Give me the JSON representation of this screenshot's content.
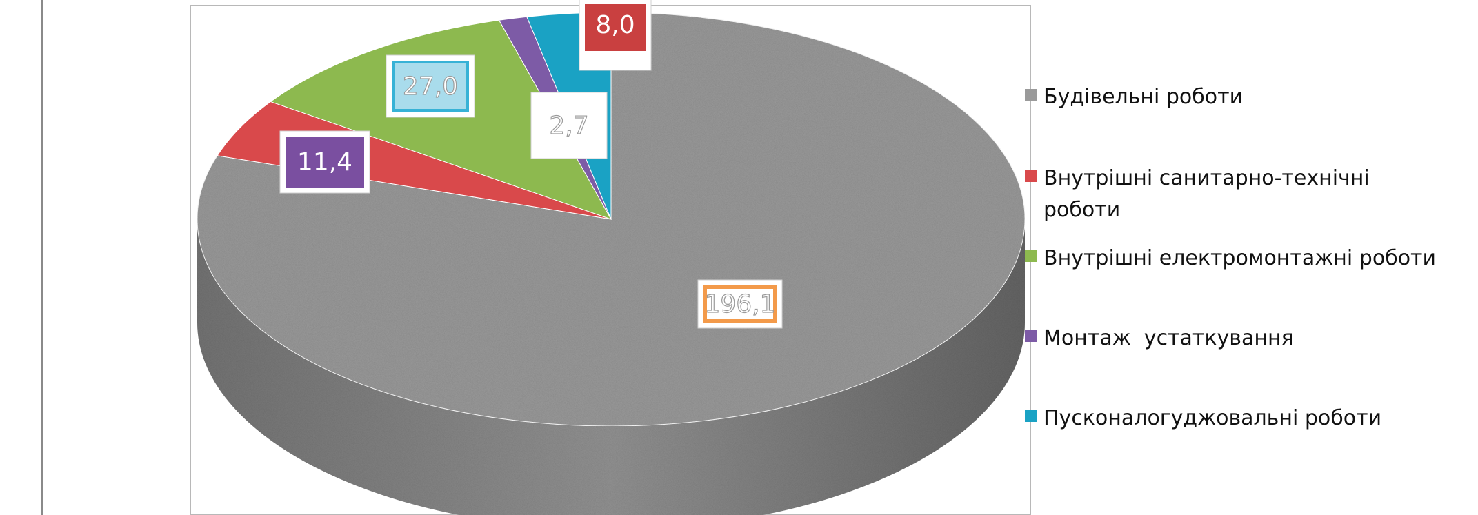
{
  "chart_data": {
    "type": "pie",
    "title": "",
    "categories": [
      "Будівельні роботи",
      "Внутрішні санитарно-технічні роботи",
      "Внутрішні електромонтажні роботи",
      "Монтаж  устаткування",
      "Пусконалогуджовальні роботи"
    ],
    "values": [
      196.1,
      11.4,
      27.0,
      2.7,
      8.0
    ],
    "data_labels": [
      "196,1",
      "11,4",
      "27,0",
      "2,7",
      "8,0"
    ],
    "colors": [
      "#9a9a9a",
      "#d9494b",
      "#8db94f",
      "#7d5ba6",
      "#1aa2c4"
    ],
    "label_colors": [
      "#f39a4a",
      "#7a4fa0",
      "#37b2d6",
      "#ffffff",
      "#c94040"
    ],
    "legend_position": "right",
    "style": "3d-pie"
  },
  "legend": {
    "items": [
      {
        "label": "Будівельні роботи",
        "color": "#9a9a9a"
      },
      {
        "label": "Внутрішні санитарно-технічні роботи",
        "color": "#d9494b"
      },
      {
        "label": "Внутрішні електромонтажні роботи",
        "color": "#8db94f"
      },
      {
        "label": "Монтаж  устаткування",
        "color": "#7d5ba6"
      },
      {
        "label": "Пусконалогуджовальні роботи",
        "color": "#1aa2c4"
      }
    ]
  }
}
